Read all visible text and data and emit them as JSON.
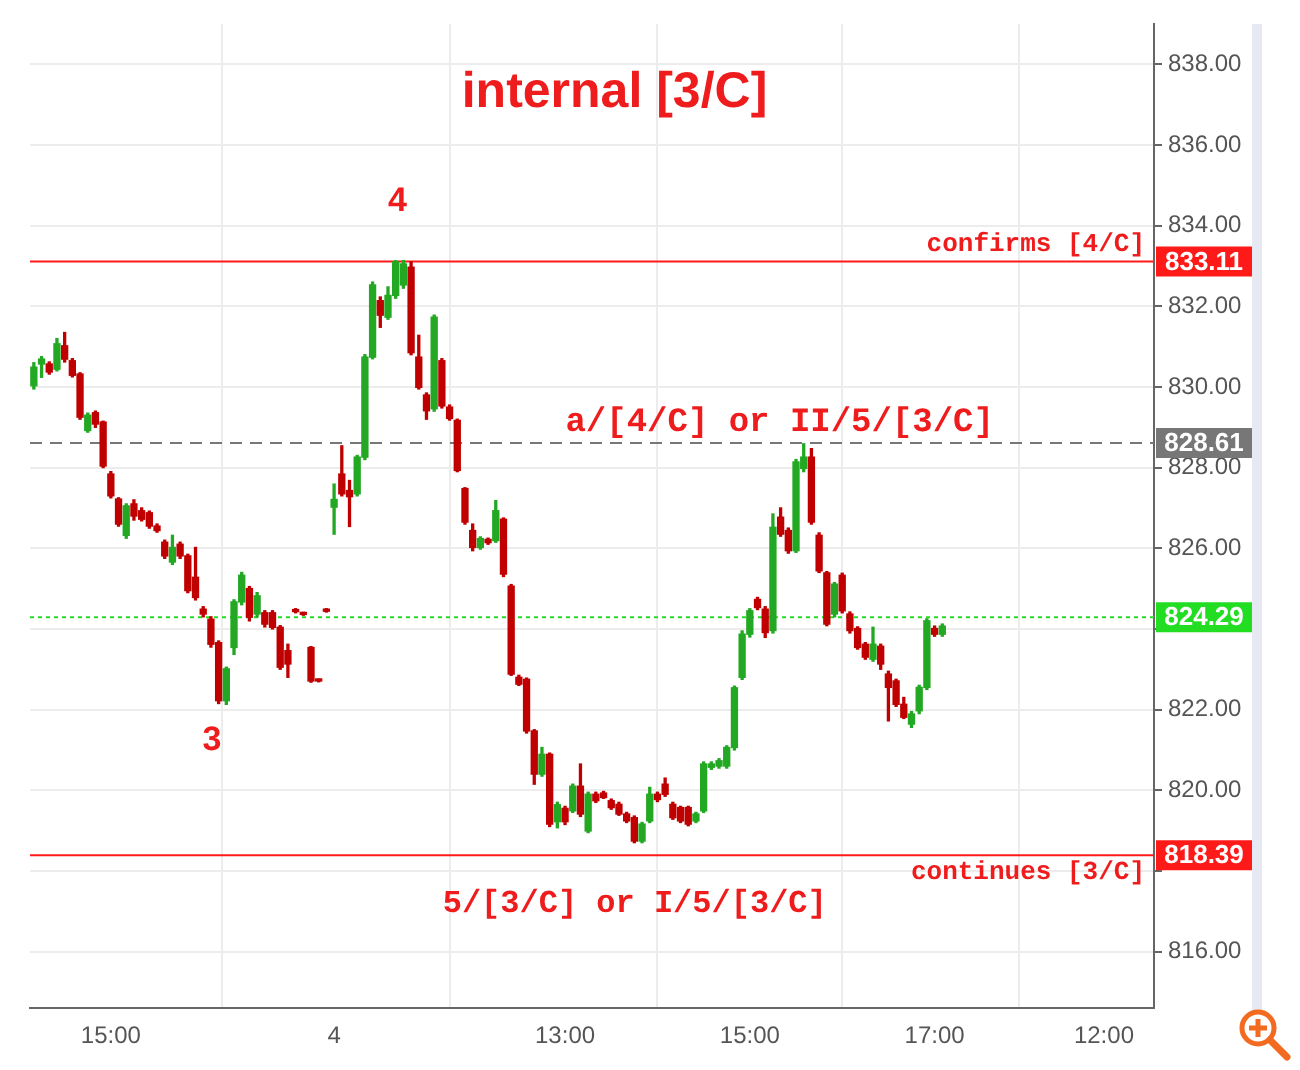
{
  "chart_data": {
    "type": "candlestick",
    "title": "internal [3/C]",
    "categories": [
      null,
      null,
      null,
      null,
      null,
      null,
      null,
      null,
      null,
      null,
      "15:00",
      null,
      null,
      null,
      null,
      null,
      null,
      null,
      null,
      null,
      null,
      null,
      null,
      null,
      null,
      null,
      null,
      null,
      null,
      null,
      null,
      null,
      null,
      null,
      null,
      null,
      null,
      null,
      null,
      "4",
      null,
      null,
      null,
      null,
      null,
      null,
      null,
      null,
      null,
      null,
      null,
      null,
      null,
      null,
      null,
      null,
      null,
      null,
      null,
      null,
      null,
      null,
      null,
      null,
      null,
      null,
      null,
      null,
      null,
      "13:00",
      null,
      null,
      null,
      null,
      null,
      null,
      null,
      null,
      null,
      null,
      null,
      null,
      null,
      null,
      null,
      null,
      null,
      null,
      null,
      null,
      null,
      null,
      null,
      "15:00",
      null,
      null,
      null,
      null,
      null,
      null,
      null,
      null,
      null,
      null,
      null,
      null,
      null,
      null,
      null,
      null,
      null,
      null,
      null,
      null,
      null,
      null,
      null,
      "17:00",
      null,
      null,
      null,
      null,
      null,
      null,
      null,
      null,
      null,
      null,
      null,
      null,
      null,
      null,
      null,
      null,
      null,
      null,
      null,
      null,
      null,
      "12:00",
      null,
      null,
      null,
      null,
      null,
      null
    ],
    "ohlc": [
      [
        830.03,
        830.6,
        829.95,
        830.49
      ],
      [
        830.57,
        830.75,
        830.24,
        830.69
      ],
      [
        830.57,
        830.62,
        830.32,
        830.37
      ],
      [
        830.44,
        831.2,
        830.4,
        831.07
      ],
      [
        831.02,
        831.35,
        830.62,
        830.69
      ],
      [
        830.65,
        830.7,
        830.25,
        830.29
      ],
      [
        830.32,
        830.35,
        829.2,
        829.25
      ],
      [
        828.92,
        829.35,
        828.88,
        829.3
      ],
      [
        829.36,
        829.4,
        829.0,
        829.08
      ],
      [
        829.13,
        829.15,
        828.0,
        828.04
      ],
      [
        827.84,
        827.9,
        827.25,
        827.3
      ],
      [
        827.22,
        827.25,
        826.55,
        826.6
      ],
      [
        826.32,
        827.1,
        826.25,
        827.05
      ],
      [
        827.1,
        827.2,
        826.7,
        826.8
      ],
      [
        826.93,
        827.0,
        826.68,
        826.72
      ],
      [
        826.88,
        826.92,
        826.5,
        826.55
      ],
      [
        826.55,
        826.6,
        826.4,
        826.44
      ],
      [
        826.15,
        826.2,
        825.75,
        825.81
      ],
      [
        825.66,
        826.32,
        825.6,
        826.02
      ],
      [
        826.1,
        826.15,
        825.75,
        825.81
      ],
      [
        825.81,
        825.85,
        824.9,
        824.95
      ],
      [
        825.28,
        826.02,
        824.72,
        824.78
      ],
      [
        824.49,
        824.55,
        824.3,
        824.37
      ],
      [
        824.24,
        824.3,
        823.55,
        823.62
      ],
      [
        823.66,
        823.7,
        822.15,
        822.22
      ],
      [
        822.22,
        823.05,
        822.13,
        823.01
      ],
      [
        823.54,
        824.72,
        823.37,
        824.67
      ],
      [
        824.67,
        825.4,
        824.6,
        825.33
      ],
      [
        825.0,
        825.05,
        824.2,
        824.29
      ],
      [
        824.37,
        824.9,
        824.3,
        824.82
      ],
      [
        824.4,
        824.45,
        824.05,
        824.12
      ],
      [
        824.4,
        824.45,
        824.0,
        824.04
      ],
      [
        824.04,
        824.08,
        823.0,
        823.05
      ],
      [
        823.46,
        823.62,
        822.8,
        823.13
      ],
      [
        824.47,
        824.5,
        824.4,
        824.43
      ],
      [
        824.39,
        824.41,
        824.34,
        824.36
      ],
      [
        823.54,
        823.56,
        822.68,
        822.71
      ],
      [
        822.73,
        822.75,
        822.69,
        822.71
      ],
      [
        824.47,
        824.5,
        824.42,
        824.44
      ],
      [
        827.02,
        827.59,
        826.35,
        827.21
      ],
      [
        827.84,
        828.54,
        827.3,
        827.35
      ],
      [
        827.43,
        827.68,
        826.54,
        827.28
      ],
      [
        827.35,
        828.3,
        827.3,
        828.26
      ],
      [
        828.26,
        830.8,
        828.2,
        830.74
      ],
      [
        830.74,
        832.6,
        830.7,
        832.53
      ],
      [
        832.14,
        832.23,
        831.48,
        831.78
      ],
      [
        831.73,
        832.48,
        831.68,
        832.27
      ],
      [
        832.27,
        833.13,
        832.2,
        833.1
      ],
      [
        832.53,
        833.13,
        832.45,
        833.05
      ],
      [
        832.97,
        833.1,
        830.8,
        830.85
      ],
      [
        830.74,
        831.28,
        829.95,
        829.99
      ],
      [
        829.8,
        829.85,
        829.2,
        829.41
      ],
      [
        829.46,
        831.78,
        829.4,
        831.73
      ],
      [
        830.65,
        830.7,
        829.48,
        829.53
      ],
      [
        829.5,
        829.55,
        829.18,
        829.22
      ],
      [
        829.17,
        829.2,
        827.9,
        827.93
      ],
      [
        827.48,
        827.5,
        826.6,
        826.65
      ],
      [
        826.44,
        826.6,
        825.94,
        826.02
      ],
      [
        826.02,
        826.28,
        825.98,
        826.24
      ],
      [
        826.22,
        826.25,
        826.1,
        826.14
      ],
      [
        826.19,
        827.18,
        826.15,
        826.93
      ],
      [
        826.72,
        826.75,
        825.3,
        825.36
      ],
      [
        825.06,
        825.1,
        822.85,
        822.88
      ],
      [
        822.8,
        822.85,
        822.6,
        822.63
      ],
      [
        822.75,
        822.78,
        821.42,
        821.47
      ],
      [
        821.47,
        821.5,
        820.15,
        820.4
      ],
      [
        820.4,
        821.06,
        820.35,
        820.89
      ],
      [
        820.89,
        820.92,
        819.1,
        819.16
      ],
      [
        819.22,
        819.7,
        819.07,
        819.64
      ],
      [
        819.55,
        819.6,
        819.15,
        819.22
      ],
      [
        819.49,
        820.15,
        819.45,
        820.1
      ],
      [
        820.1,
        820.65,
        819.35,
        819.41
      ],
      [
        818.99,
        819.95,
        818.95,
        819.9
      ],
      [
        819.9,
        819.95,
        819.7,
        819.74
      ],
      [
        819.93,
        819.97,
        819.8,
        819.82
      ],
      [
        819.74,
        819.78,
        819.53,
        819.57
      ],
      [
        819.65,
        819.7,
        819.38,
        819.41
      ],
      [
        819.41,
        819.45,
        819.2,
        819.24
      ],
      [
        819.32,
        819.36,
        818.7,
        818.74
      ],
      [
        818.74,
        819.2,
        818.7,
        819.16
      ],
      [
        819.24,
        820.07,
        819.2,
        819.9
      ],
      [
        819.9,
        819.95,
        819.72,
        819.77
      ],
      [
        820.15,
        820.3,
        819.85,
        819.9
      ],
      [
        819.65,
        819.7,
        819.28,
        819.32
      ],
      [
        819.57,
        819.6,
        819.2,
        819.24
      ],
      [
        819.57,
        819.6,
        819.12,
        819.16
      ],
      [
        819.24,
        819.45,
        819.2,
        819.41
      ],
      [
        819.49,
        820.7,
        819.45,
        820.65
      ],
      [
        820.57,
        820.7,
        820.52,
        820.65
      ],
      [
        820.6,
        820.78,
        820.55,
        820.73
      ],
      [
        820.6,
        821.1,
        820.55,
        821.06
      ],
      [
        821.06,
        822.58,
        821.0,
        822.54
      ],
      [
        822.8,
        823.95,
        822.75,
        823.87
      ],
      [
        823.87,
        824.5,
        823.8,
        824.45
      ],
      [
        824.73,
        824.78,
        824.48,
        824.53
      ],
      [
        824.49,
        824.55,
        823.79,
        823.91
      ],
      [
        823.96,
        826.85,
        823.9,
        826.52
      ],
      [
        826.77,
        827.0,
        826.3,
        826.35
      ],
      [
        826.44,
        826.5,
        825.88,
        825.94
      ],
      [
        825.94,
        828.2,
        825.9,
        828.14
      ],
      [
        827.98,
        828.59,
        827.9,
        828.26
      ],
      [
        828.26,
        828.47,
        826.6,
        826.65
      ],
      [
        826.32,
        826.38,
        825.4,
        825.44
      ],
      [
        825.39,
        825.42,
        824.08,
        824.12
      ],
      [
        824.37,
        825.15,
        824.3,
        825.11
      ],
      [
        825.33,
        825.38,
        824.4,
        824.45
      ],
      [
        824.37,
        824.42,
        823.9,
        823.96
      ],
      [
        824.01,
        824.05,
        823.5,
        823.54
      ],
      [
        823.62,
        823.66,
        823.25,
        823.3
      ],
      [
        823.25,
        824.04,
        823.2,
        823.62
      ],
      [
        823.57,
        823.62,
        823.0,
        823.13
      ],
      [
        822.88,
        822.95,
        821.72,
        822.55
      ],
      [
        822.71,
        822.75,
        822.08,
        822.13
      ],
      [
        822.13,
        822.3,
        821.78,
        821.81
      ],
      [
        821.64,
        821.95,
        821.56,
        821.89
      ],
      [
        821.97,
        822.6,
        821.9,
        822.55
      ],
      [
        822.55,
        824.25,
        822.5,
        824.2
      ],
      [
        824.01,
        824.07,
        823.82,
        823.87
      ],
      [
        823.87,
        824.12,
        823.82,
        824.07
      ],
      null,
      null,
      null,
      null,
      null,
      null,
      null,
      null,
      null,
      null,
      null,
      null,
      null,
      null,
      null,
      null,
      null,
      null,
      null,
      null,
      null,
      null,
      null,
      null,
      null,
      null,
      null
    ],
    "colors": [
      "#22a822",
      "#22a822",
      "#c00000",
      "#22a822",
      "#c00000",
      "#c00000",
      "#c00000",
      "#22a822",
      "#c00000",
      "#c00000",
      "#c00000",
      "#c00000",
      "#22a822",
      "#c00000",
      "#c00000",
      "#c00000",
      "#c00000",
      "#c00000",
      "#22a822",
      "#c00000",
      "#c00000",
      "#c00000",
      "#c00000",
      "#c00000",
      "#c00000",
      "#22a822",
      "#22a822",
      "#22a822",
      "#c00000",
      "#22a822",
      "#c00000",
      "#c00000",
      "#c00000",
      "#c00000",
      "#c00000",
      "#c00000",
      "#c00000",
      "#c00000",
      "#c00000",
      "#22a822",
      "#c00000",
      "#c00000",
      "#22a822",
      "#22a822",
      "#22a822",
      "#c00000",
      "#22a822",
      "#22a822",
      "#22a822",
      "#c00000",
      "#c00000",
      "#c00000",
      "#22a822",
      "#c00000",
      "#c00000",
      "#c00000",
      "#c00000",
      "#c00000",
      "#22a822",
      "#c00000",
      "#22a822",
      "#c00000",
      "#c00000",
      "#c00000",
      "#c00000",
      "#c00000",
      "#22a822",
      "#c00000",
      "#22a822",
      "#c00000",
      "#22a822",
      "#c00000",
      "#22a822",
      "#c00000",
      "#c00000",
      "#c00000",
      "#c00000",
      "#c00000",
      "#c00000",
      "#22a822",
      "#22a822",
      "#c00000",
      "#c00000",
      "#c00000",
      "#c00000",
      "#c00000",
      "#22a822",
      "#22a822",
      "#22a822",
      "#22a822",
      "#22a822",
      "#22a822",
      "#22a822",
      "#22a822",
      "#c00000",
      "#c00000",
      "#22a822",
      "#c00000",
      "#c00000",
      "#22a822",
      "#22a822",
      "#c00000",
      "#c00000",
      "#c00000",
      "#22a822",
      "#c00000",
      "#c00000",
      "#c00000",
      "#c00000",
      "#22a822",
      "#c00000",
      "#c00000",
      "#c00000",
      "#c00000",
      "#22a822",
      "#22a822",
      "#22a822",
      "#c00000",
      "#22a822",
      null,
      null,
      null,
      null,
      null,
      null,
      null,
      null,
      null,
      null,
      null,
      null,
      null,
      null,
      null,
      null,
      null,
      null,
      null,
      null,
      null,
      null,
      null,
      null,
      null,
      null,
      null
    ],
    "ylim": [
      814.6,
      839
    ],
    "yticks": [
      {
        "value": 816,
        "label": "816.00"
      },
      {
        "value": 818,
        "label": null
      },
      {
        "value": 820,
        "label": "820.00"
      },
      {
        "value": 822,
        "label": "822.00"
      },
      {
        "value": 824,
        "label": null
      },
      {
        "value": 826,
        "label": "826.00"
      },
      {
        "value": 828,
        "label": "828.00"
      },
      {
        "value": 830,
        "label": "830.00"
      },
      {
        "value": 832,
        "label": "832.00"
      },
      {
        "value": 834,
        "label": "834.00"
      },
      {
        "value": 836,
        "label": "836.00"
      },
      {
        "value": 838,
        "label": "838.00"
      }
    ],
    "grid": true,
    "ref_lines": [
      {
        "axis": "y",
        "value": 833.11,
        "label": "confirms [4/C]",
        "color": "#ff1a1a",
        "line_style": "solid"
      },
      {
        "axis": "y",
        "value": 828.61,
        "label": "a/[4/C] or II/5/[3/C]",
        "color": "#777777",
        "line_style": "dashed"
      },
      {
        "axis": "y",
        "value": 824.29,
        "color": "#22dd22",
        "line_style": "dotted"
      },
      {
        "axis": "y",
        "value": 818.39,
        "label": "continues [3/C]",
        "color": "#ff1a1a",
        "line_style": "solid"
      }
    ],
    "annotations": [
      "4",
      "3",
      "5/[3/C] or I/5/[3/C]",
      "833.11",
      "828.61",
      "824.29",
      "818.39"
    ]
  }
}
